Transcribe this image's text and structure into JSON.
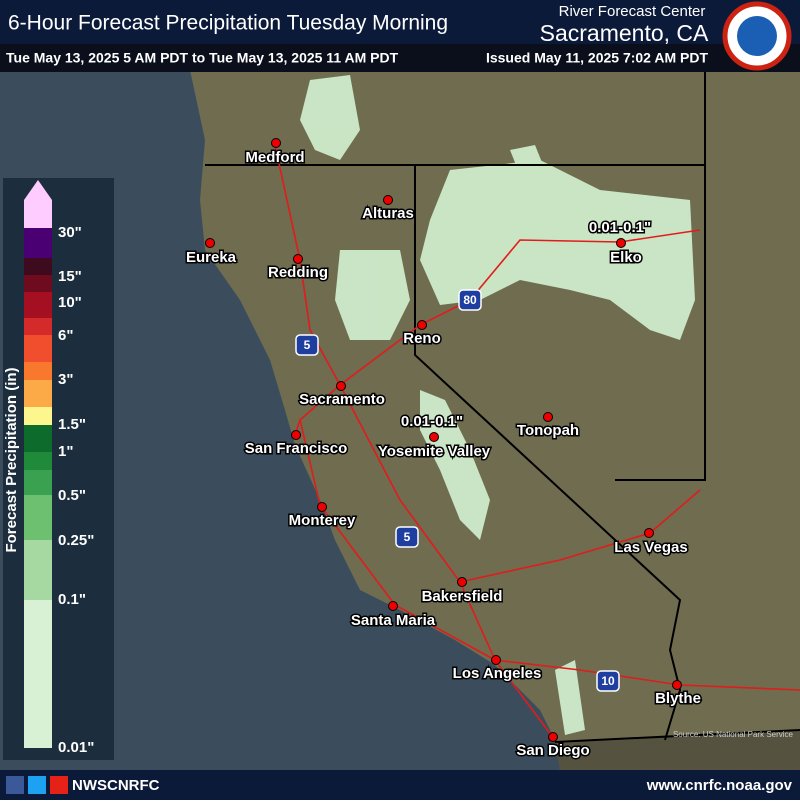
{
  "header": {
    "title": "6-Hour Forecast Precipitation Tuesday Morning",
    "center": "River Forecast Center",
    "office": "Sacramento, CA",
    "valid": "Tue May 13, 2025 5 AM PDT to Tue May 13, 2025 11 AM PDT",
    "issued": "Issued May 11, 2025 7:02 AM PDT"
  },
  "legend": {
    "title": "Forecast Precipitation (in)",
    "colors": [
      "#ffccff",
      "#4a0072",
      "#3d0a1e",
      "#6e0b1e",
      "#a50f22",
      "#d42a2a",
      "#f04e2c",
      "#f8782e",
      "#fcaa48",
      "#fdf58e",
      "#0d6b2b",
      "#1f8a3a",
      "#3aa150",
      "#6cc070",
      "#a6d9a2",
      "#d8f0d4"
    ],
    "labels": [
      "30\"",
      "15\"",
      "10\"",
      "6\"",
      "3\"",
      "1.5\"",
      "1\"",
      "0.5\"",
      "0.25\"",
      "0.1\"",
      "0.01\""
    ]
  },
  "cities": [
    "Medford",
    "Alturas",
    "Eureka",
    "Redding",
    "Elko",
    "Reno",
    "Sacramento",
    "Tonopah",
    "San Francisco",
    "Yosemite Valley",
    "Monterey",
    "Las Vegas",
    "Bakersfield",
    "Santa Maria",
    "Los Angeles",
    "Blythe",
    "San Diego"
  ],
  "annotations": [
    "0.01-0.1\"",
    "0.01-0.1\""
  ],
  "highways": [
    "80",
    "5",
    "5",
    "10"
  ],
  "source": "Source: US National Park Service",
  "footer": {
    "handle": "NWSCNRFC",
    "url": "www.cnrfc.noaa.gov"
  }
}
